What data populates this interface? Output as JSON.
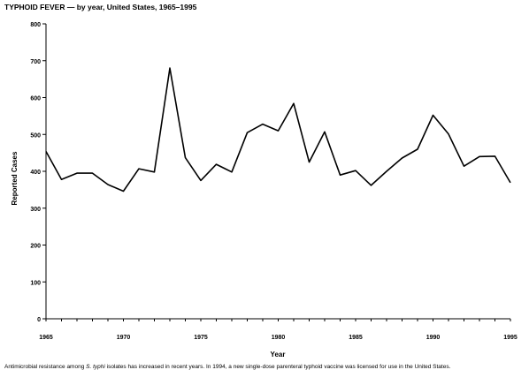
{
  "title": "TYPHOID FEVER — by year, United States, 1965–1995",
  "chart_data": {
    "type": "line",
    "xlabel": "Year",
    "ylabel": "Reported Cases",
    "xlim": [
      1965,
      1995
    ],
    "ylim": [
      0,
      800
    ],
    "x_ticks": [
      1965,
      1970,
      1975,
      1980,
      1985,
      1990,
      1995
    ],
    "y_ticks": [
      0,
      100,
      200,
      300,
      400,
      500,
      600,
      700,
      800
    ],
    "grid": false,
    "series": [
      {
        "x": [
          1965,
          1966,
          1967,
          1968,
          1969,
          1970,
          1971,
          1972,
          1973,
          1974,
          1975,
          1976,
          1977,
          1978,
          1979,
          1980,
          1981,
          1982,
          1983,
          1984,
          1985,
          1986,
          1987,
          1988,
          1989,
          1990,
          1991,
          1992,
          1993,
          1994,
          1995
        ],
        "y": [
          454,
          378,
          395,
          395,
          364,
          346,
          407,
          398,
          680,
          437,
          375,
          419,
          398,
          505,
          528,
          510,
          584,
          425,
          507,
          390,
          402,
          362,
          400,
          436,
          460,
          552,
          501,
          414,
          440,
          441,
          369
        ]
      }
    ]
  },
  "footnote": {
    "before": "Antimicrobial resistance among ",
    "italic": "S. typhi",
    "after": " isolates has increased in recent years. In 1994, a new single-dose parenteral typhoid vaccine was licensed for use in the United States."
  }
}
